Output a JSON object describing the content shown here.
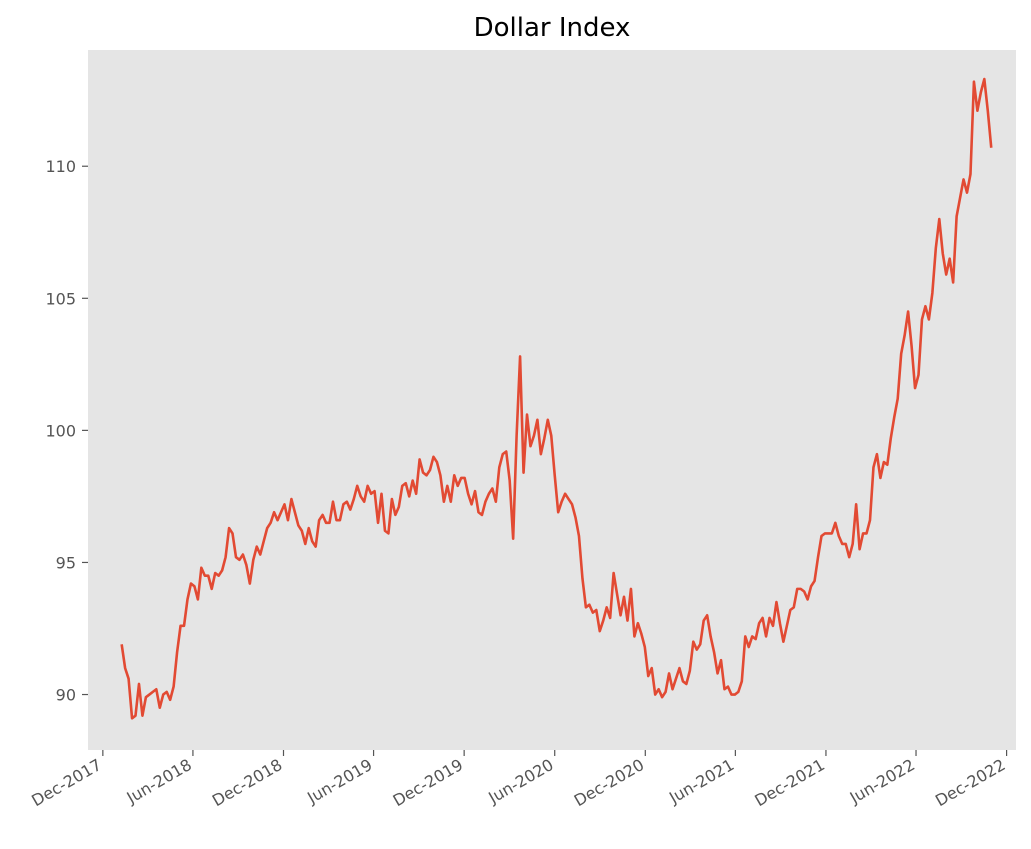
{
  "chart_data": {
    "type": "line",
    "title": "Dollar Index",
    "xlabel": "",
    "ylabel": "",
    "x_range": [
      "2017-11-01",
      "2022-12-20"
    ],
    "ylim": [
      87.9,
      114.4
    ],
    "x_ticks": [
      {
        "label": "Dec-2017",
        "date": "2017-12-01"
      },
      {
        "label": "Jun-2018",
        "date": "2018-06-01"
      },
      {
        "label": "Dec-2018",
        "date": "2018-12-01"
      },
      {
        "label": "Jun-2019",
        "date": "2019-06-01"
      },
      {
        "label": "Dec-2019",
        "date": "2019-12-01"
      },
      {
        "label": "Jun-2020",
        "date": "2020-06-01"
      },
      {
        "label": "Dec-2020",
        "date": "2020-12-01"
      },
      {
        "label": "Jun-2021",
        "date": "2021-06-01"
      },
      {
        "label": "Dec-2021",
        "date": "2021-12-01"
      },
      {
        "label": "Jun-2022",
        "date": "2022-06-01"
      },
      {
        "label": "Dec-2022",
        "date": "2022-12-01"
      }
    ],
    "y_ticks": [
      90,
      95,
      100,
      105,
      110
    ],
    "grid": false,
    "background": "#e5e5e5",
    "line_color": "#e24a33",
    "series": [
      {
        "x": [
          "2018-01-08",
          "2018-01-15",
          "2018-01-22",
          "2018-01-29",
          "2018-02-05",
          "2018-02-12",
          "2018-02-19",
          "2018-02-26",
          "2018-03-05",
          "2018-03-12",
          "2018-03-19",
          "2018-03-26",
          "2018-04-02",
          "2018-04-09",
          "2018-04-16",
          "2018-04-23",
          "2018-04-30",
          "2018-05-07",
          "2018-05-14",
          "2018-05-21",
          "2018-05-28",
          "2018-06-04",
          "2018-06-11",
          "2018-06-18",
          "2018-06-25",
          "2018-07-02",
          "2018-07-09",
          "2018-07-16",
          "2018-07-23",
          "2018-07-30",
          "2018-08-06",
          "2018-08-13",
          "2018-08-20",
          "2018-08-27",
          "2018-09-03",
          "2018-09-10",
          "2018-09-17",
          "2018-09-24",
          "2018-10-01",
          "2018-10-08",
          "2018-10-15",
          "2018-10-22",
          "2018-10-29",
          "2018-11-05",
          "2018-11-12",
          "2018-11-19",
          "2018-11-26",
          "2018-12-03",
          "2018-12-10",
          "2018-12-17",
          "2018-12-24",
          "2018-12-31",
          "2019-01-07",
          "2019-01-14",
          "2019-01-21",
          "2019-01-28",
          "2019-02-04",
          "2019-02-11",
          "2019-02-18",
          "2019-02-25",
          "2019-03-04",
          "2019-03-11",
          "2019-03-18",
          "2019-03-25",
          "2019-04-01",
          "2019-04-08",
          "2019-04-15",
          "2019-04-22",
          "2019-04-29",
          "2019-05-06",
          "2019-05-13",
          "2019-05-20",
          "2019-05-27",
          "2019-06-03",
          "2019-06-10",
          "2019-06-17",
          "2019-06-24",
          "2019-07-01",
          "2019-07-08",
          "2019-07-15",
          "2019-07-22",
          "2019-07-29",
          "2019-08-05",
          "2019-08-12",
          "2019-08-19",
          "2019-08-26",
          "2019-09-02",
          "2019-09-09",
          "2019-09-16",
          "2019-09-23",
          "2019-09-30",
          "2019-10-07",
          "2019-10-14",
          "2019-10-21",
          "2019-10-28",
          "2019-11-04",
          "2019-11-11",
          "2019-11-18",
          "2019-11-25",
          "2019-12-02",
          "2019-12-09",
          "2019-12-16",
          "2019-12-23",
          "2019-12-30",
          "2020-01-06",
          "2020-01-13",
          "2020-01-20",
          "2020-01-27",
          "2020-02-03",
          "2020-02-10",
          "2020-02-17",
          "2020-02-24",
          "2020-03-02",
          "2020-03-09",
          "2020-03-16",
          "2020-03-23",
          "2020-03-30",
          "2020-04-06",
          "2020-04-13",
          "2020-04-20",
          "2020-04-27",
          "2020-05-04",
          "2020-05-11",
          "2020-05-18",
          "2020-05-25",
          "2020-06-01",
          "2020-06-08",
          "2020-06-15",
          "2020-06-22",
          "2020-06-29",
          "2020-07-06",
          "2020-07-13",
          "2020-07-20",
          "2020-07-27",
          "2020-08-03",
          "2020-08-10",
          "2020-08-17",
          "2020-08-24",
          "2020-08-31",
          "2020-09-07",
          "2020-09-14",
          "2020-09-21",
          "2020-09-28",
          "2020-10-05",
          "2020-10-12",
          "2020-10-19",
          "2020-10-26",
          "2020-11-02",
          "2020-11-09",
          "2020-11-16",
          "2020-11-23",
          "2020-11-30",
          "2020-12-07",
          "2020-12-14",
          "2020-12-21",
          "2020-12-28",
          "2021-01-04",
          "2021-01-11",
          "2021-01-18",
          "2021-01-25",
          "2021-02-01",
          "2021-02-08",
          "2021-02-15",
          "2021-02-22",
          "2021-03-01",
          "2021-03-08",
          "2021-03-15",
          "2021-03-22",
          "2021-03-29",
          "2021-04-05",
          "2021-04-12",
          "2021-04-19",
          "2021-04-26",
          "2021-05-03",
          "2021-05-10",
          "2021-05-17",
          "2021-05-24",
          "2021-05-31",
          "2021-06-07",
          "2021-06-14",
          "2021-06-21",
          "2021-06-28",
          "2021-07-05",
          "2021-07-12",
          "2021-07-19",
          "2021-07-26",
          "2021-08-02",
          "2021-08-09",
          "2021-08-16",
          "2021-08-23",
          "2021-08-30",
          "2021-09-06",
          "2021-09-13",
          "2021-09-20",
          "2021-09-27",
          "2021-10-04",
          "2021-10-11",
          "2021-10-18",
          "2021-10-25",
          "2021-11-01",
          "2021-11-08",
          "2021-11-15",
          "2021-11-22",
          "2021-11-29",
          "2021-12-06",
          "2021-12-13",
          "2021-12-20",
          "2021-12-27",
          "2022-01-03",
          "2022-01-10",
          "2022-01-17",
          "2022-01-24",
          "2022-01-31",
          "2022-02-07",
          "2022-02-14",
          "2022-02-21",
          "2022-02-28",
          "2022-03-07",
          "2022-03-14",
          "2022-03-21",
          "2022-03-28",
          "2022-04-04",
          "2022-04-11",
          "2022-04-18",
          "2022-04-25",
          "2022-05-02",
          "2022-05-09",
          "2022-05-16",
          "2022-05-23",
          "2022-05-30",
          "2022-06-06",
          "2022-06-13",
          "2022-06-20",
          "2022-06-27",
          "2022-07-04",
          "2022-07-11",
          "2022-07-18",
          "2022-07-25",
          "2022-08-01",
          "2022-08-08",
          "2022-08-15",
          "2022-08-22",
          "2022-08-29",
          "2022-09-05",
          "2022-09-12",
          "2022-09-19",
          "2022-09-26",
          "2022-10-03",
          "2022-10-10",
          "2022-10-17",
          "2022-10-24",
          "2022-10-31"
        ],
        "values": [
          91.9,
          91.0,
          90.6,
          89.1,
          89.2,
          90.4,
          89.2,
          89.9,
          90.0,
          90.1,
          90.2,
          89.5,
          90.0,
          90.1,
          89.8,
          90.3,
          91.6,
          92.6,
          92.6,
          93.6,
          94.2,
          94.1,
          93.6,
          94.8,
          94.5,
          94.5,
          94.0,
          94.6,
          94.5,
          94.7,
          95.2,
          96.3,
          96.1,
          95.2,
          95.1,
          95.3,
          94.9,
          94.2,
          95.1,
          95.6,
          95.3,
          95.8,
          96.3,
          96.5,
          96.9,
          96.6,
          96.9,
          97.2,
          96.6,
          97.4,
          96.9,
          96.4,
          96.2,
          95.7,
          96.3,
          95.8,
          95.6,
          96.6,
          96.8,
          96.5,
          96.5,
          97.3,
          96.6,
          96.6,
          97.2,
          97.3,
          97.0,
          97.4,
          97.9,
          97.5,
          97.3,
          97.9,
          97.6,
          97.7,
          96.5,
          97.6,
          96.2,
          96.1,
          97.4,
          96.8,
          97.1,
          97.9,
          98.0,
          97.5,
          98.1,
          97.6,
          98.9,
          98.4,
          98.3,
          98.5,
          99.0,
          98.8,
          98.3,
          97.3,
          97.9,
          97.3,
          98.3,
          97.9,
          98.2,
          98.2,
          97.6,
          97.2,
          97.7,
          96.9,
          96.8,
          97.3,
          97.6,
          97.8,
          97.3,
          98.6,
          99.1,
          99.2,
          98.1,
          95.9,
          99.8,
          102.8,
          98.4,
          100.6,
          99.4,
          99.8,
          100.4,
          99.1,
          99.7,
          100.4,
          99.8,
          98.3,
          96.9,
          97.3,
          97.6,
          97.4,
          97.2,
          96.7,
          96.0,
          94.4,
          93.3,
          93.4,
          93.1,
          93.2,
          92.4,
          92.8,
          93.3,
          92.9,
          94.6,
          93.8,
          93.0,
          93.7,
          92.8,
          94.0,
          92.2,
          92.7,
          92.3,
          91.8,
          90.7,
          91.0,
          90.0,
          90.2,
          89.9,
          90.1,
          90.8,
          90.2,
          90.6,
          91.0,
          90.5,
          90.4,
          90.9,
          92.0,
          91.7,
          91.9,
          92.8,
          93.0,
          92.2,
          91.6,
          90.8,
          91.3,
          90.2,
          90.3,
          90.0,
          90.0,
          90.1,
          90.5,
          92.2,
          91.8,
          92.2,
          92.1,
          92.7,
          92.9,
          92.2,
          92.9,
          92.6,
          93.5,
          92.7,
          92.0,
          92.6,
          93.2,
          93.3,
          94.0,
          94.0,
          93.9,
          93.6,
          94.1,
          94.3,
          95.2,
          96.0,
          96.1,
          96.1,
          96.1,
          96.5,
          96.0,
          95.7,
          95.7,
          95.2,
          95.7,
          97.2,
          95.5,
          96.1,
          96.1,
          96.6,
          98.6,
          99.1,
          98.2,
          98.8,
          98.7,
          99.7,
          100.5,
          101.2,
          102.9,
          103.6,
          104.5,
          103.2,
          101.6,
          102.1,
          104.2,
          104.7,
          104.2,
          105.2,
          106.9,
          108.0,
          106.7,
          105.9,
          106.5,
          105.6,
          108.1,
          108.8,
          109.5,
          109.0,
          109.7,
          113.2,
          112.1,
          112.8,
          113.3,
          112.1,
          110.7
        ]
      }
    ]
  }
}
